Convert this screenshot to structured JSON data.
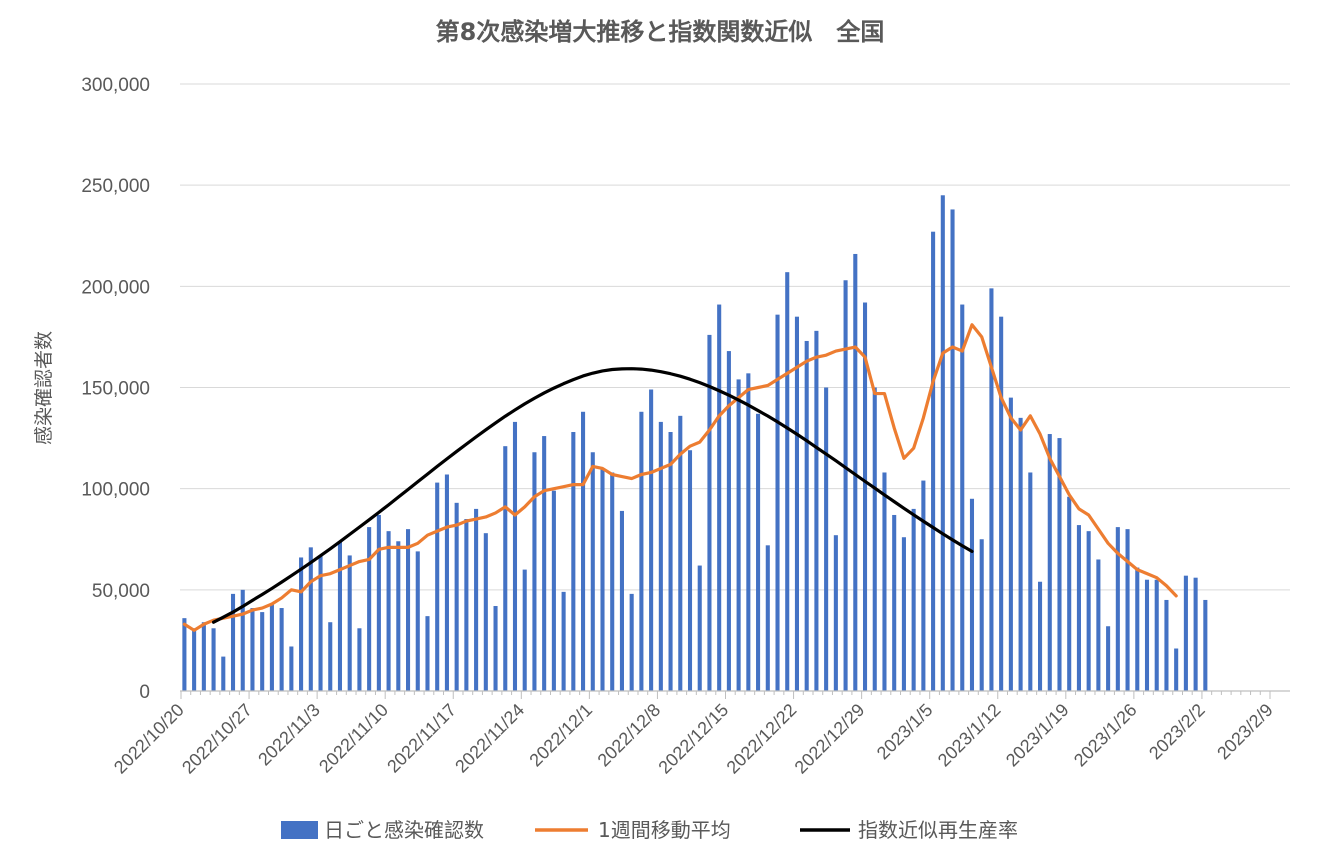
{
  "chart_data": {
    "type": "bar",
    "title": "第8次感染増大推移と指数関数近似　全国",
    "ylabel": "感染確認者数",
    "xlabel": "",
    "ylim": [
      0,
      300000
    ],
    "y_ticks": [
      "0",
      "50,000",
      "100,000",
      "150,000",
      "200,000",
      "250,000",
      "300,000"
    ],
    "x_tick_labels": [
      "2022/10/20",
      "2022/10/27",
      "2022/11/3",
      "2022/11/10",
      "2022/11/17",
      "2022/11/24",
      "2022/12/1",
      "2022/12/8",
      "2022/12/15",
      "2022/12/22",
      "2022/12/29",
      "2023/1/5",
      "2023/1/12",
      "2023/1/19",
      "2023/1/26",
      "2023/2/2",
      "2023/2/9"
    ],
    "x_start": "2022/10/20",
    "x_end": "2023/2/9",
    "grid": true,
    "legend_position": "bottom",
    "colors": {
      "bars": "#4472c4",
      "moving_average": "#ed7d31",
      "fit": "#000000",
      "grid": "#d9d9d9",
      "axis": "#bfbfbf",
      "text": "#595959"
    },
    "series": [
      {
        "name": "日ごと感染確認数",
        "type": "bar",
        "color": "#4472c4",
        "values": [
          36000,
          31000,
          34000,
          31000,
          17000,
          48000,
          50000,
          41000,
          39000,
          43000,
          41000,
          22000,
          66000,
          71000,
          67000,
          34000,
          74000,
          67000,
          31000,
          81000,
          87000,
          79000,
          74000,
          80000,
          69000,
          37000,
          103000,
          107000,
          93000,
          85000,
          90000,
          78000,
          42000,
          121000,
          133000,
          60000,
          118000,
          126000,
          99000,
          49000,
          128000,
          138000,
          118000,
          110000,
          108000,
          89000,
          48000,
          138000,
          149000,
          133000,
          128000,
          136000,
          119000,
          62000,
          176000,
          191000,
          168000,
          154000,
          157000,
          137000,
          72000,
          186000,
          207000,
          185000,
          173000,
          178000,
          150000,
          77000,
          203000,
          216000,
          192000,
          150000,
          108000,
          87000,
          76000,
          90000,
          104000,
          227000,
          245000,
          238000,
          191000,
          95000,
          75000,
          199000,
          185000,
          145000,
          135000,
          108000,
          54000,
          127000,
          125000,
          96000,
          82000,
          79000,
          65000,
          32000,
          81000,
          80000,
          61000,
          55000,
          55000,
          45000,
          21000,
          57000,
          56000,
          45000
        ]
      },
      {
        "name": "1週間移動平均",
        "type": "line",
        "color": "#ed7d31",
        "values": [
          33000,
          30000,
          33000,
          35000,
          36000,
          37000,
          38000,
          40000,
          41000,
          43000,
          46000,
          50000,
          49000,
          54000,
          57000,
          58000,
          60000,
          62000,
          64000,
          65000,
          70000,
          71000,
          71000,
          71000,
          73000,
          77000,
          79000,
          81000,
          82000,
          84000,
          85000,
          86000,
          88000,
          91000,
          87000,
          91000,
          96000,
          99000,
          100000,
          101000,
          102000,
          102000,
          111000,
          110000,
          107000,
          106000,
          105000,
          107000,
          108000,
          110000,
          112000,
          117000,
          121000,
          123000,
          129000,
          136000,
          141000,
          145000,
          149000,
          150000,
          151000,
          154000,
          157000,
          160000,
          163000,
          165000,
          166000,
          168000,
          169000,
          170000,
          165000,
          147000,
          147000,
          130000,
          115000,
          120000,
          135000,
          153000,
          167000,
          170000,
          168000,
          181000,
          175000,
          160000,
          145000,
          135000,
          129000,
          136000,
          127000,
          115000,
          106000,
          97000,
          90000,
          87000,
          80000,
          73000,
          68000,
          64000,
          60000,
          58000,
          56000,
          52000,
          47000
        ]
      },
      {
        "name": "指数近似再生産率",
        "type": "line",
        "color": "#000000",
        "values": [
          34000,
          36500,
          39000,
          41800,
          44800,
          47700,
          50700,
          53800,
          57000,
          60200,
          63500,
          66900,
          70300,
          73800,
          77400,
          81000,
          84600,
          88300,
          92000,
          95800,
          99600,
          103400,
          107200,
          111000,
          114700,
          118400,
          122000,
          125600,
          129100,
          132500,
          135800,
          138900,
          141900,
          144700,
          147300,
          149700,
          151900,
          153900,
          155700,
          157100,
          158200,
          158900,
          159200,
          159300,
          159100,
          158600,
          157800,
          156800,
          155600,
          154100,
          152400,
          150500,
          148400,
          146200,
          143800,
          141300,
          138600,
          135900,
          133000,
          130000,
          126900,
          123700,
          120400,
          117100,
          113800,
          110400,
          107000,
          103600,
          100300,
          96900,
          93600,
          90300,
          87100,
          83900,
          80800,
          77700,
          74700,
          71800,
          69000
        ]
      }
    ]
  }
}
